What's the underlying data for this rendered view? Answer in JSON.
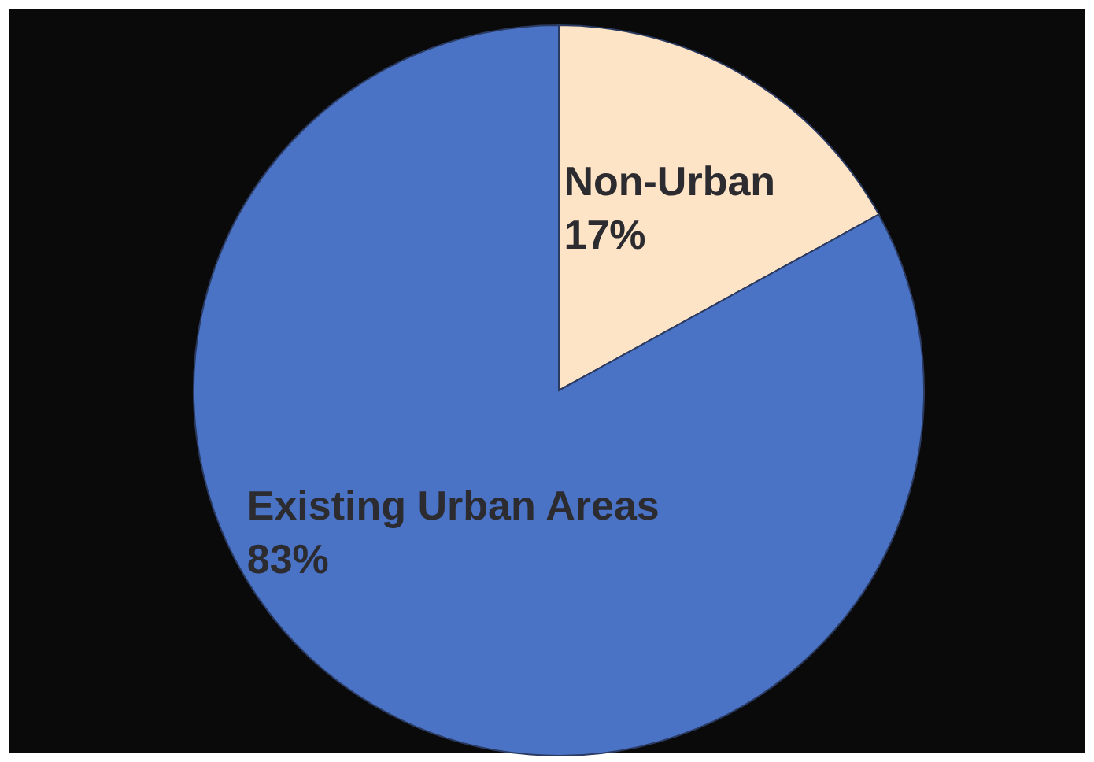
{
  "chart_data": {
    "type": "pie",
    "categories": [
      "Non-Urban",
      "Existing Urban Areas"
    ],
    "values": [
      17,
      83
    ],
    "value_labels": [
      "17%",
      "83%"
    ],
    "colors": [
      "#fde4c6",
      "#4a73c6"
    ]
  }
}
